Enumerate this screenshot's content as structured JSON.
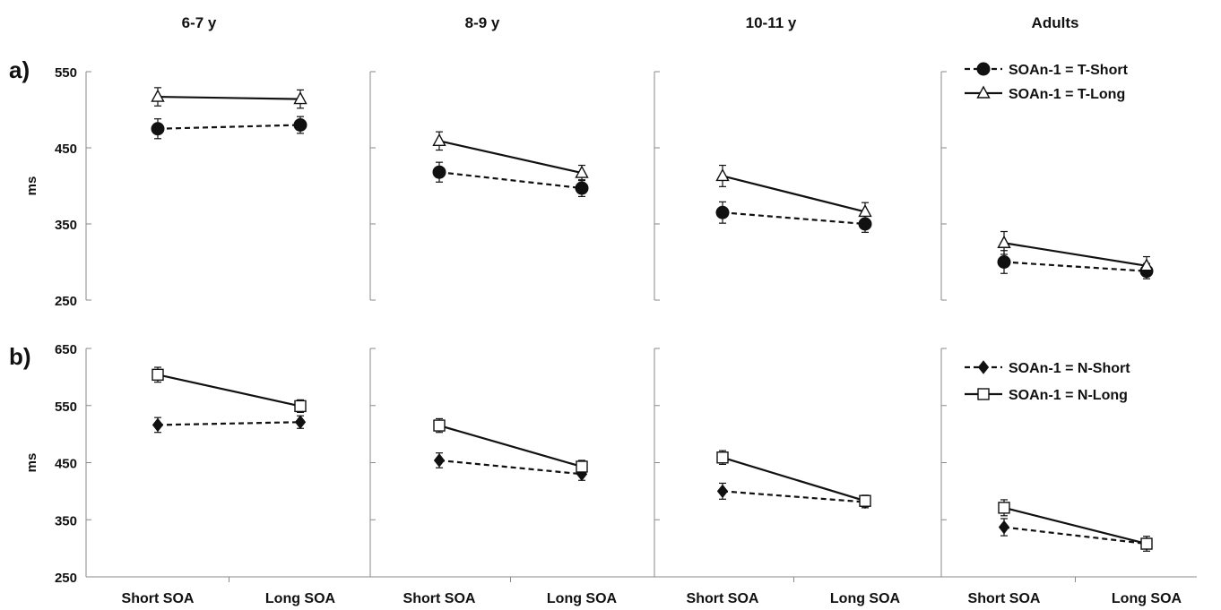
{
  "chart_data": {
    "type": "line",
    "categories": [
      "Short SOA",
      "Long SOA"
    ],
    "groups": [
      "6-7 y",
      "8-9 y",
      "10-11 y",
      "Adults"
    ],
    "colors": {
      "line": "#111111",
      "filled_marker": "#111111",
      "open_marker": "#ffffff"
    },
    "panels": [
      {
        "panel_label": "a)",
        "ylabel": "ms",
        "ylim": [
          250,
          550
        ],
        "yticks": [
          "250",
          "350",
          "450",
          "550"
        ],
        "legend_position": "top-right",
        "series": [
          {
            "name": "SOAn-1 = T-Short",
            "marker": "filled-circle",
            "line_style": "dashed",
            "values": [
              [
                475,
                480
              ],
              [
                418,
                397
              ],
              [
                365,
                350
              ],
              [
                300,
                288
              ]
            ],
            "errors": [
              [
                13,
                11
              ],
              [
                13,
                11
              ],
              [
                14,
                11
              ],
              [
                15,
                10
              ]
            ]
          },
          {
            "name": "SOAn-1 = T-Long",
            "marker": "open-triangle",
            "line_style": "solid",
            "values": [
              [
                517,
                514
              ],
              [
                459,
                417
              ],
              [
                413,
                366
              ],
              [
                325,
                295
              ]
            ],
            "errors": [
              [
                12,
                12
              ],
              [
                12,
                10
              ],
              [
                14,
                12
              ],
              [
                15,
                12
              ]
            ]
          }
        ]
      },
      {
        "panel_label": "b)",
        "ylabel": "ms",
        "ylim": [
          250,
          650
        ],
        "yticks": [
          "250",
          "350",
          "450",
          "550",
          "650"
        ],
        "legend_position": "top-right",
        "series": [
          {
            "name": "SOAn-1 = N-Short",
            "marker": "filled-diamond",
            "line_style": "dashed",
            "values": [
              [
                516,
                521
              ],
              [
                454,
                430
              ],
              [
                400,
                381
              ],
              [
                337,
                308
              ]
            ],
            "errors": [
              [
                13,
                11
              ],
              [
                13,
                11
              ],
              [
                14,
                10
              ],
              [
                15,
                13
              ]
            ]
          },
          {
            "name": "SOAn-1 = N-Long",
            "marker": "open-square",
            "line_style": "solid",
            "values": [
              [
                604,
                549
              ],
              [
                515,
                443
              ],
              [
                459,
                383
              ],
              [
                371,
                308
              ]
            ],
            "errors": [
              [
                13,
                11
              ],
              [
                12,
                11
              ],
              [
                12,
                10
              ],
              [
                14,
                8
              ]
            ]
          }
        ]
      }
    ]
  }
}
